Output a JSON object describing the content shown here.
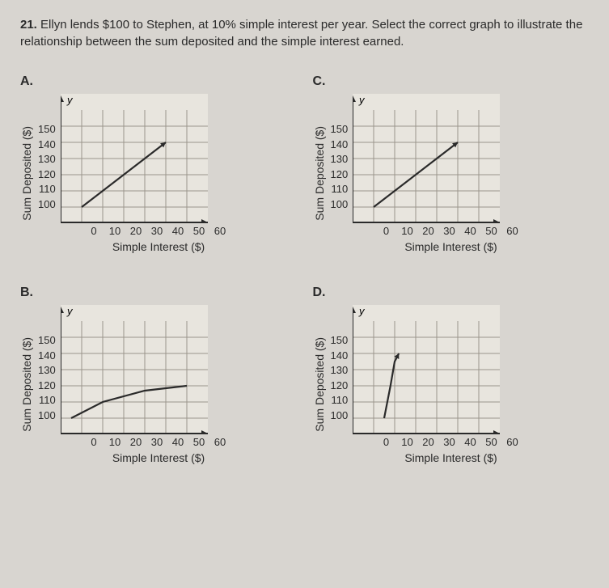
{
  "question": {
    "number": "21.",
    "text": "Ellyn lends $100 to Stephen, at 10% simple interest per year. Select the correct graph to illustrate the relationship between the sum deposited and the simple interest earned."
  },
  "axes": {
    "ylabel": "Sum Deposited ($)",
    "xlabel": "Simple Interest ($)",
    "yticks": [
      "150",
      "140",
      "130",
      "120",
      "110",
      "100"
    ],
    "xticks": [
      "0",
      "10",
      "20",
      "30",
      "40",
      "50",
      "60"
    ],
    "ylim": [
      90,
      160
    ],
    "xlim": [
      0,
      70
    ],
    "grid_color": "#9a958c",
    "axis_color": "#2a2a2a",
    "background": "#e8e5de",
    "line_color": "#2a2a2a",
    "line_width": 2.2,
    "yvar": "y",
    "xvar": "x"
  },
  "panels": {
    "A": {
      "label": "A.",
      "type": "line",
      "pts": [
        [
          10,
          100
        ],
        [
          50,
          140
        ]
      ],
      "arrow_end": true
    },
    "B": {
      "label": "B.",
      "type": "curve",
      "pts": [
        [
          5,
          100
        ],
        [
          20,
          110
        ],
        [
          40,
          117
        ],
        [
          60,
          120
        ]
      ],
      "arrow_end": false
    },
    "C": {
      "label": "C.",
      "type": "line",
      "pts": [
        [
          10,
          100
        ],
        [
          50,
          140
        ]
      ],
      "arrow_end": true
    },
    "D": {
      "label": "D.",
      "type": "curve",
      "pts": [
        [
          15,
          100
        ],
        [
          18,
          120
        ],
        [
          20,
          135
        ],
        [
          22,
          140
        ]
      ],
      "arrow_end": true
    }
  },
  "plot": {
    "w": 182,
    "h": 160
  }
}
